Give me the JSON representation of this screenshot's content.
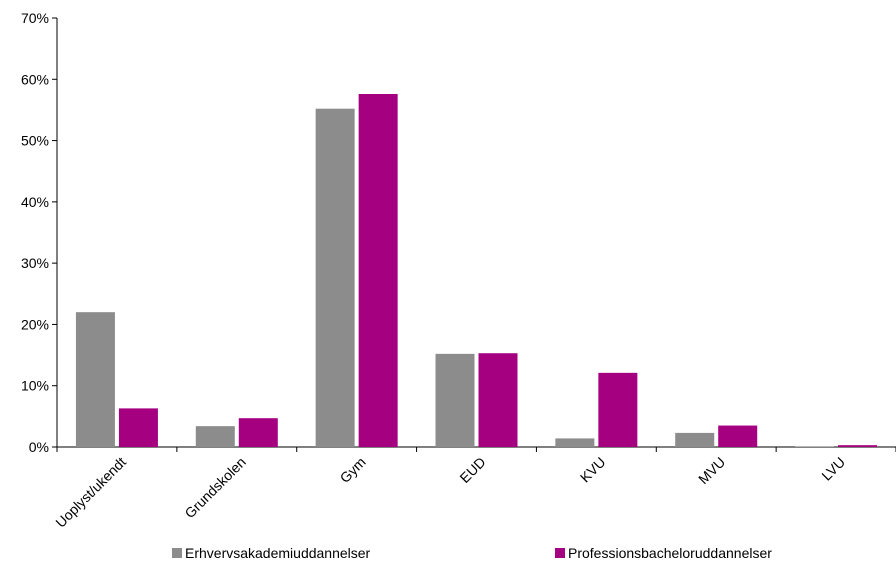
{
  "chart_data": {
    "type": "bar",
    "title": "",
    "xlabel": "",
    "ylabel": "",
    "categories": [
      "Uoplyst/ukendt",
      "Grundskolen",
      "Gym",
      "EUD",
      "KVU",
      "MVU",
      "LVU"
    ],
    "series": [
      {
        "name": "Erhvervsakademiuddannelser",
        "color": "#8c8c8c",
        "values": [
          22.0,
          3.4,
          55.2,
          15.2,
          1.4,
          2.3,
          0.1
        ]
      },
      {
        "name": "Professionsbacheloruddannelser",
        "color": "#a50080",
        "values": [
          6.3,
          4.7,
          57.6,
          15.3,
          12.1,
          3.5,
          0.3
        ]
      }
    ],
    "ylim": [
      0,
      70
    ],
    "yticks": [
      0,
      10,
      20,
      30,
      40,
      50,
      60,
      70
    ],
    "ytick_labels": [
      "0%",
      "10%",
      "20%",
      "30%",
      "40%",
      "50%",
      "60%",
      "70%"
    ],
    "grid": false,
    "legend_position": "bottom"
  }
}
